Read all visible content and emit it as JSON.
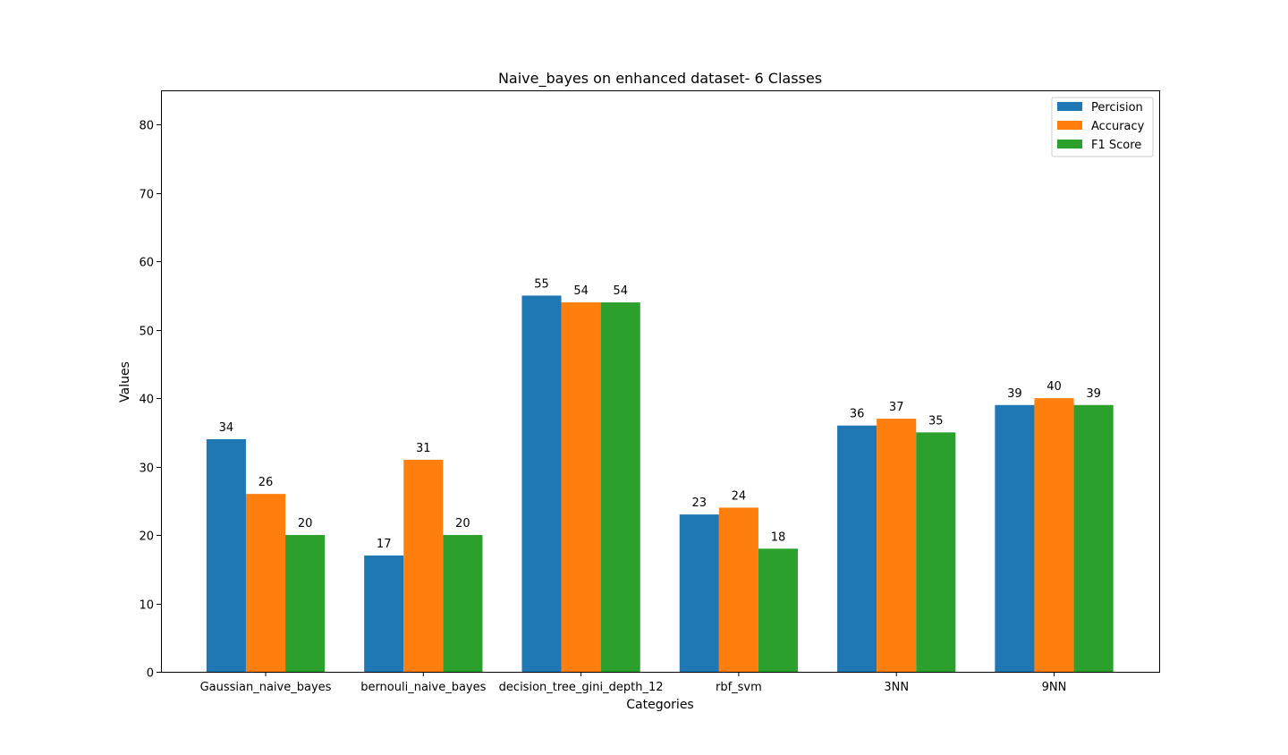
{
  "chart_data": {
    "type": "bar",
    "title": "Naive_bayes on enhanced dataset- 6 Classes",
    "xlabel": "Categories",
    "ylabel": "Values",
    "ylim": [
      0,
      85
    ],
    "yticks": [
      0,
      10,
      20,
      30,
      40,
      50,
      60,
      70,
      80
    ],
    "grid": false,
    "legend_position": "top-right",
    "categories": [
      "Gaussian_naive_bayes",
      "bernouli_naive_bayes",
      "decision_tree_gini_depth_12",
      "rbf_svm",
      "3NN",
      "9NN"
    ],
    "series": [
      {
        "name": "Percision",
        "color": "#1f77b4",
        "values": [
          34,
          17,
          55,
          23,
          36,
          39
        ]
      },
      {
        "name": "Accuracy",
        "color": "#ff7f0e",
        "values": [
          26,
          31,
          54,
          24,
          37,
          40
        ]
      },
      {
        "name": "F1 Score",
        "color": "#2ca02c",
        "values": [
          20,
          20,
          54,
          18,
          35,
          39
        ]
      }
    ]
  }
}
